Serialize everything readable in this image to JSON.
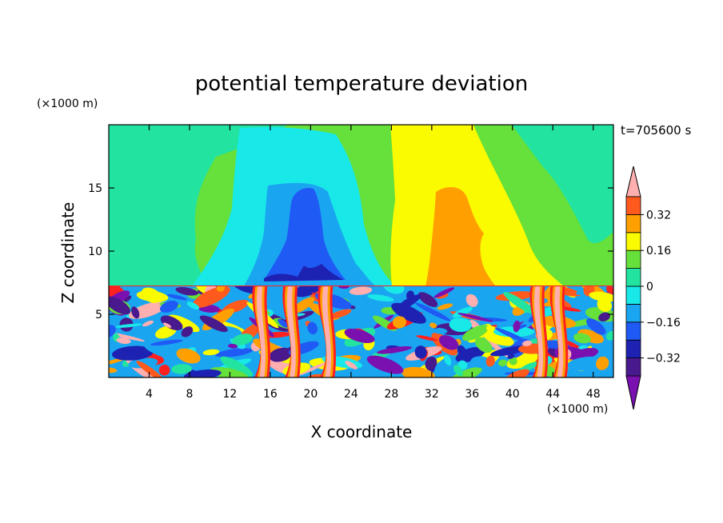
{
  "chart_data": {
    "type": "heatmap",
    "title": "potential temperature deviation",
    "xlabel": "X coordinate",
    "ylabel": "Z coordinate",
    "x_unit": "(×1000 m)",
    "y_unit": "(×1000 m)",
    "time_label": "t=705600 s",
    "xlim": [
      0,
      50
    ],
    "ylim": [
      0,
      20
    ],
    "x_ticks": [
      4,
      8,
      12,
      16,
      20,
      24,
      28,
      32,
      36,
      40,
      44,
      48
    ],
    "y_ticks": [
      5,
      10,
      15
    ],
    "colorbar": {
      "levels": [
        -0.4,
        -0.32,
        -0.24,
        -0.16,
        -0.08,
        0,
        0.08,
        0.16,
        0.24,
        0.32,
        0.4
      ],
      "tick_labels": [
        {
          "value": 0.32,
          "label": "0.32"
        },
        {
          "value": 0.16,
          "label": "0.16"
        },
        {
          "value": 0,
          "label": "0"
        },
        {
          "value": -0.16,
          "label": "−0.16"
        },
        {
          "value": -0.32,
          "label": "−0.32"
        }
      ],
      "colors": [
        "#7a10b0",
        "#481a8e",
        "#1e22b2",
        "#1f5af5",
        "#1aa5f0",
        "#19e8e8",
        "#22e4a0",
        "#66e03a",
        "#fafa00",
        "#ffa000",
        "#ff5a1e",
        "#ff2020",
        "#ffafaf"
      ],
      "extend": "both"
    },
    "upper_layer": {
      "top_km": 20,
      "base_km": 7.2,
      "regions": [
        {
          "x": [
            0,
            10
          ],
          "value": 0.04,
          "note": "green"
        },
        {
          "x": [
            10,
            13
          ],
          "value": -0.08,
          "note": "cyan"
        },
        {
          "x": [
            13,
            19
          ],
          "value": -0.12,
          "note": "cyan-light-blue"
        },
        {
          "x": [
            16.5,
            21.5
          ],
          "value": -0.24,
          "note": "blue core up to ~15 km"
        },
        {
          "x": [
            19,
            24
          ],
          "value": -0.16,
          "note": "light blue"
        },
        {
          "x": [
            24,
            28
          ],
          "value": 0.04,
          "note": "green"
        },
        {
          "x": [
            28,
            37
          ],
          "value": 0.14,
          "note": "yellow"
        },
        {
          "x": [
            31,
            35
          ],
          "value": 0.2,
          "note": "orange core up to ~15 km"
        },
        {
          "x": [
            37,
            41
          ],
          "value": 0.1,
          "note": "yellow-green"
        },
        {
          "x": [
            41,
            50
          ],
          "value": 0.0,
          "note": "green / teal"
        }
      ]
    },
    "lower_layer": {
      "top_km": 7.2,
      "description": "turbulent mix of all levels from -0.4 to 0.4",
      "plumes": [
        {
          "x": 15,
          "value": 0.32
        },
        {
          "x": 18,
          "value": 0.36
        },
        {
          "x": 21.5,
          "value": 0.4
        },
        {
          "x": 42.5,
          "value": 0.4
        },
        {
          "x": 44.5,
          "value": 0.36
        }
      ]
    }
  }
}
